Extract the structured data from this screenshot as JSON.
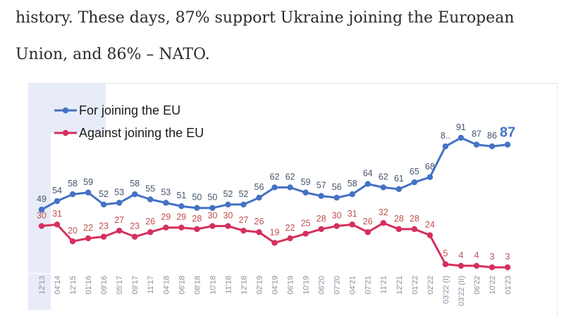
{
  "article": {
    "line1": "history. These days, 87% support Ukraine joining the European",
    "line2": "Union, and 86% – NATO."
  },
  "colors": {
    "for_series": "#4472c4",
    "against_series": "#d62f5d",
    "label_for": "#44546a",
    "label_against": "#c0504d",
    "tick": "#8a8fa0"
  },
  "chart_data": {
    "type": "line",
    "categories": [
      "12'13",
      "04'14",
      "12'15",
      "01'16",
      "09'16",
      "05'17",
      "09'17",
      "11'17",
      "04'18",
      "06'18",
      "08'18",
      "10'18",
      "11'18",
      "12'18",
      "02'19",
      "04'19",
      "06'19",
      "10'19",
      "06'20",
      "07'20",
      "04'21",
      "07'21",
      "11'21",
      "12'21",
      "01'22",
      "02'22",
      "03'22 (I)",
      "03'22 (II)",
      "06'22",
      "10'22",
      "01'23"
    ],
    "series": [
      {
        "name": "For joining the EU",
        "values": [
          49,
          54,
          58,
          59,
          52,
          53,
          58,
          55,
          53,
          51,
          50,
          50,
          52,
          52,
          56,
          62,
          62,
          59,
          57,
          56,
          58,
          64,
          62,
          61,
          65,
          68,
          86,
          91,
          87,
          86,
          87
        ],
        "labels": [
          "49",
          "54",
          "58",
          "59",
          "52",
          "53",
          "58",
          "55",
          "53",
          "51",
          "50",
          "50",
          "52",
          "52",
          "56",
          "62",
          "62",
          "59",
          "57",
          "56",
          "58",
          "64",
          "62",
          "61",
          "65",
          "68",
          "8..",
          "91",
          "87",
          "86",
          "87"
        ]
      },
      {
        "name": "Against joining the EU",
        "values": [
          30,
          31,
          20,
          22,
          23,
          27,
          23,
          26,
          29,
          29,
          28,
          30,
          30,
          27,
          26,
          19,
          22,
          25,
          28,
          30,
          31,
          26,
          32,
          28,
          28,
          24,
          5,
          4,
          4,
          3,
          3
        ],
        "labels": [
          "30",
          "31",
          "20",
          "22",
          "23",
          "27",
          "23",
          "26",
          "29",
          "29",
          "28",
          "30",
          "30",
          "27",
          "26",
          "19",
          "22",
          "25",
          "28",
          "30",
          "31",
          "26",
          "32",
          "28",
          "28",
          "24",
          "5",
          "4",
          "4",
          "3",
          "3"
        ]
      }
    ],
    "legend_position": "top-left",
    "grid": false
  }
}
